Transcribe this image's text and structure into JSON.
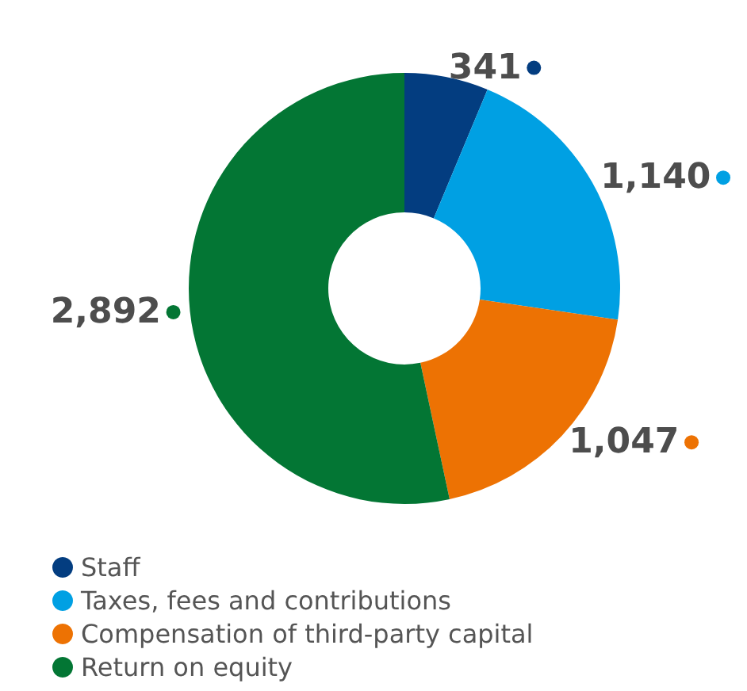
{
  "chart_data": {
    "type": "donut",
    "categories": [
      "Staff",
      "Taxes, fees and contributions",
      "Compensation of third-party capital",
      "Return on equity"
    ],
    "values": [
      341,
      1140,
      1047,
      2892
    ],
    "value_labels": [
      "341",
      "1,140",
      "1,047",
      "2,892"
    ],
    "colors": [
      "#033d80",
      "#00a0e3",
      "#ed7203",
      "#037634"
    ],
    "legend": "bottom left"
  }
}
